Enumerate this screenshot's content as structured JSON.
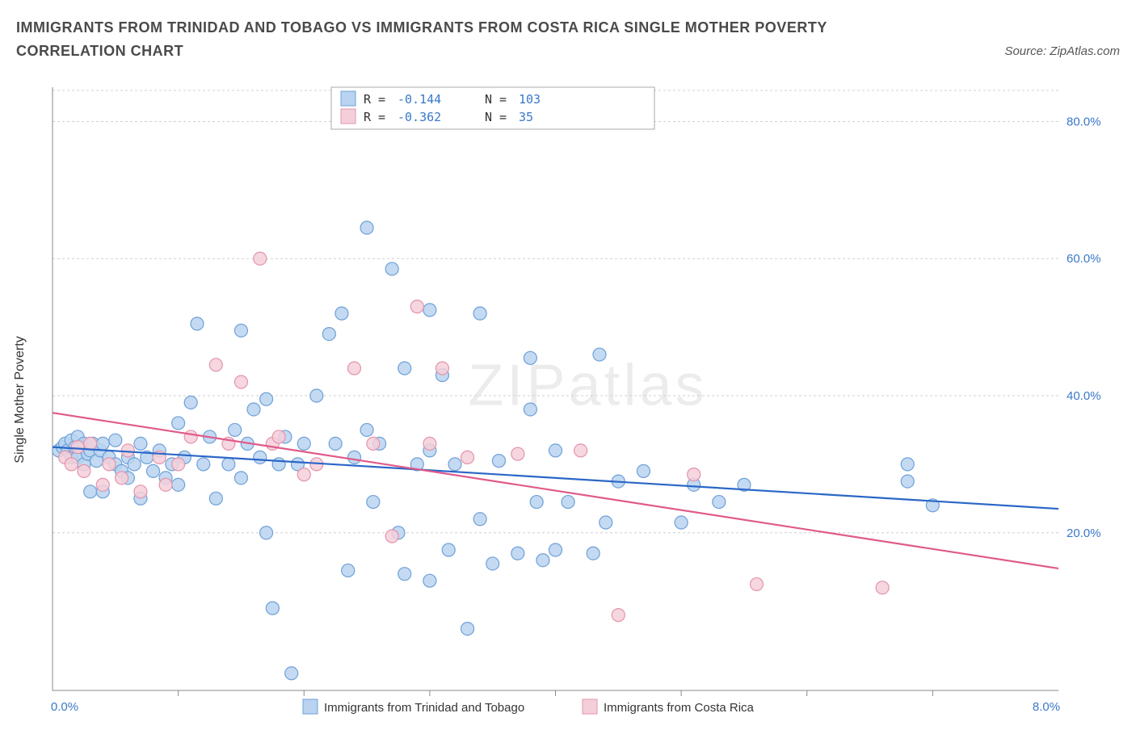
{
  "title": "IMMIGRANTS FROM TRINIDAD AND TOBAGO VS IMMIGRANTS FROM COSTA RICA SINGLE MOTHER POVERTY CORRELATION CHART",
  "source": "Source: ZipAtlas.com",
  "watermark": "ZIPatlas",
  "chart": {
    "type": "scatter",
    "ylabel": "Single Mother Poverty",
    "x_range": [
      0.0,
      8.0
    ],
    "y_range": [
      -3.0,
      85.0
    ],
    "x_ticks": [
      0.0,
      8.0
    ],
    "x_tick_labels": [
      "0.0%",
      "8.0%"
    ],
    "x_minor_steps": [
      1.0,
      2.0,
      3.0,
      4.0,
      5.0,
      6.0,
      7.0
    ],
    "y_ticks": [
      20.0,
      40.0,
      60.0,
      80.0
    ],
    "y_tick_labels": [
      "20.0%",
      "40.0%",
      "60.0%",
      "80.0%"
    ],
    "grid_color": "#d0d0d0",
    "background": "#ffffff",
    "x_label_color": "#3a78c9",
    "y_label_color": "#3a78c9",
    "series": [
      {
        "key": "tt",
        "label": "Immigrants from Trinidad and Tobago",
        "point_fill": "#b9d3f0",
        "point_stroke": "#6fa0d8",
        "trend_color": "#2b67c7",
        "R": "-0.144",
        "N": "103",
        "trend": {
          "y_at_xmin": 32.5,
          "y_at_xmax": 23.5
        },
        "points": [
          [
            0.05,
            32.0
          ],
          [
            0.08,
            32.5
          ],
          [
            0.1,
            33.0
          ],
          [
            0.12,
            32.0
          ],
          [
            0.15,
            33.5
          ],
          [
            0.15,
            31.0
          ],
          [
            0.18,
            32.5
          ],
          [
            0.2,
            34.0
          ],
          [
            0.2,
            31.0
          ],
          [
            0.22,
            32.5
          ],
          [
            0.25,
            30.0
          ],
          [
            0.25,
            33.0
          ],
          [
            0.28,
            31.5
          ],
          [
            0.3,
            32.0
          ],
          [
            0.3,
            26.0
          ],
          [
            0.32,
            33.0
          ],
          [
            0.35,
            30.5
          ],
          [
            0.38,
            32.0
          ],
          [
            0.4,
            26.0
          ],
          [
            0.4,
            33.0
          ],
          [
            0.45,
            31.0
          ],
          [
            0.5,
            30.0
          ],
          [
            0.5,
            33.5
          ],
          [
            0.55,
            29.0
          ],
          [
            0.6,
            31.0
          ],
          [
            0.6,
            28.0
          ],
          [
            0.65,
            30.0
          ],
          [
            0.7,
            33.0
          ],
          [
            0.7,
            25.0
          ],
          [
            0.75,
            31.0
          ],
          [
            0.8,
            29.0
          ],
          [
            0.85,
            32.0
          ],
          [
            0.9,
            28.0
          ],
          [
            0.95,
            30.0
          ],
          [
            1.0,
            36.0
          ],
          [
            1.0,
            27.0
          ],
          [
            1.05,
            31.0
          ],
          [
            1.1,
            39.0
          ],
          [
            1.15,
            50.5
          ],
          [
            1.2,
            30.0
          ],
          [
            1.25,
            34.0
          ],
          [
            1.3,
            25.0
          ],
          [
            1.4,
            30.0
          ],
          [
            1.45,
            35.0
          ],
          [
            1.5,
            49.5
          ],
          [
            1.5,
            28.0
          ],
          [
            1.55,
            33.0
          ],
          [
            1.6,
            38.0
          ],
          [
            1.65,
            31.0
          ],
          [
            1.7,
            20.0
          ],
          [
            1.7,
            39.5
          ],
          [
            1.75,
            9.0
          ],
          [
            1.8,
            30.0
          ],
          [
            1.85,
            34.0
          ],
          [
            1.9,
            -0.5
          ],
          [
            1.95,
            30.0
          ],
          [
            2.0,
            33.0
          ],
          [
            2.1,
            40.0
          ],
          [
            2.2,
            49.0
          ],
          [
            2.25,
            33.0
          ],
          [
            2.3,
            52.0
          ],
          [
            2.35,
            14.5
          ],
          [
            2.4,
            31.0
          ],
          [
            2.5,
            35.0
          ],
          [
            2.5,
            64.5
          ],
          [
            2.55,
            24.5
          ],
          [
            2.6,
            33.0
          ],
          [
            2.7,
            58.5
          ],
          [
            2.75,
            20.0
          ],
          [
            2.8,
            14.0
          ],
          [
            2.8,
            44.0
          ],
          [
            2.9,
            30.0
          ],
          [
            3.0,
            13.0
          ],
          [
            3.0,
            32.0
          ],
          [
            3.0,
            52.5
          ],
          [
            3.1,
            43.0
          ],
          [
            3.15,
            17.5
          ],
          [
            3.2,
            30.0
          ],
          [
            3.3,
            6.0
          ],
          [
            3.4,
            22.0
          ],
          [
            3.4,
            52.0
          ],
          [
            3.5,
            15.5
          ],
          [
            3.55,
            30.5
          ],
          [
            3.7,
            17.0
          ],
          [
            3.8,
            45.5
          ],
          [
            3.8,
            38.0
          ],
          [
            3.85,
            24.5
          ],
          [
            3.9,
            16.0
          ],
          [
            4.0,
            32.0
          ],
          [
            4.0,
            17.5
          ],
          [
            4.1,
            24.5
          ],
          [
            4.3,
            17.0
          ],
          [
            4.35,
            46.0
          ],
          [
            4.4,
            21.5
          ],
          [
            4.5,
            27.5
          ],
          [
            4.7,
            29.0
          ],
          [
            5.0,
            21.5
          ],
          [
            5.1,
            27.0
          ],
          [
            5.3,
            24.5
          ],
          [
            5.5,
            27.0
          ],
          [
            6.8,
            27.5
          ],
          [
            6.8,
            30.0
          ],
          [
            7.0,
            24.0
          ]
        ]
      },
      {
        "key": "cr",
        "label": "Immigrants from Costa Rica",
        "point_fill": "#f4cfd9",
        "point_stroke": "#e394ab",
        "trend_color": "#e05a8a",
        "R": "-0.362",
        "N": "35",
        "trend": {
          "y_at_xmin": 37.5,
          "y_at_xmax": 14.8
        },
        "points": [
          [
            0.1,
            31.0
          ],
          [
            0.15,
            30.0
          ],
          [
            0.2,
            32.5
          ],
          [
            0.25,
            29.0
          ],
          [
            0.3,
            33.0
          ],
          [
            0.4,
            27.0
          ],
          [
            0.45,
            30.0
          ],
          [
            0.55,
            28.0
          ],
          [
            0.6,
            32.0
          ],
          [
            0.7,
            26.0
          ],
          [
            0.85,
            31.0
          ],
          [
            0.9,
            27.0
          ],
          [
            1.0,
            30.0
          ],
          [
            1.1,
            34.0
          ],
          [
            1.3,
            44.5
          ],
          [
            1.4,
            33.0
          ],
          [
            1.5,
            42.0
          ],
          [
            1.65,
            60.0
          ],
          [
            1.75,
            33.0
          ],
          [
            1.8,
            34.0
          ],
          [
            2.0,
            28.5
          ],
          [
            2.1,
            30.0
          ],
          [
            2.4,
            44.0
          ],
          [
            2.55,
            33.0
          ],
          [
            2.7,
            19.5
          ],
          [
            2.9,
            53.0
          ],
          [
            3.0,
            33.0
          ],
          [
            3.1,
            44.0
          ],
          [
            3.3,
            31.0
          ],
          [
            3.7,
            31.5
          ],
          [
            4.2,
            32.0
          ],
          [
            4.5,
            8.0
          ],
          [
            5.1,
            28.5
          ],
          [
            5.6,
            12.5
          ],
          [
            6.6,
            12.0
          ]
        ]
      }
    ],
    "marker_radius": 8,
    "marker_opacity": 0.85,
    "legend_top": {
      "R_label": "R =",
      "N_label": "N =",
      "value_color": "#3a78c9"
    }
  }
}
